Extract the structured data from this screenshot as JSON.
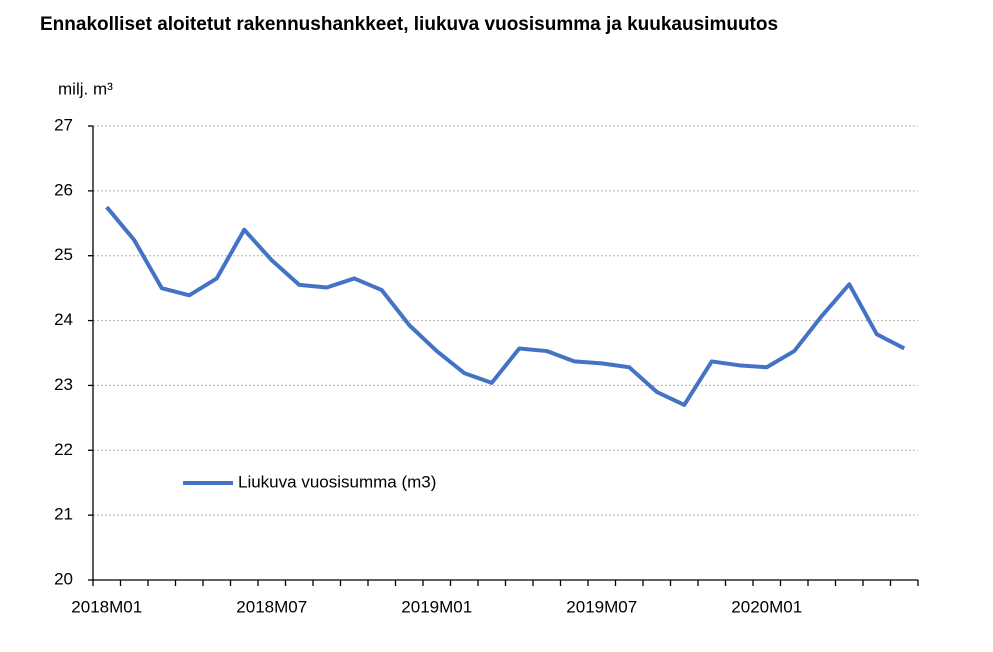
{
  "chart_data": {
    "type": "line",
    "title": "Ennakolliset aloitetut rakennushankkeet, liukuva vuosisumma ja kuukausimuutos",
    "y_label": "milj. m³",
    "categories": [
      "2018M01",
      null,
      null,
      null,
      null,
      null,
      "2018M07",
      null,
      null,
      null,
      null,
      null,
      "2019M01",
      null,
      null,
      null,
      null,
      null,
      "2019M07",
      null,
      null,
      null,
      null,
      null,
      "2020M01",
      null,
      null,
      null,
      null,
      null
    ],
    "series": [
      {
        "name": "Liukuva vuosisumma (m3)",
        "color": "#4472c4",
        "values": [
          25.75,
          25.24,
          24.5,
          24.39,
          24.65,
          25.4,
          24.93,
          24.55,
          24.51,
          24.65,
          24.47,
          23.93,
          23.53,
          23.19,
          23.04,
          23.57,
          23.53,
          23.37,
          23.34,
          23.28,
          22.9,
          22.7,
          23.37,
          23.31,
          23.28,
          23.53,
          24.07,
          24.56,
          23.79,
          23.57
        ]
      }
    ],
    "ylim": [
      20,
      27
    ],
    "yticks": [
      20,
      21,
      22,
      23,
      24,
      25,
      26,
      27
    ],
    "grid": true
  }
}
